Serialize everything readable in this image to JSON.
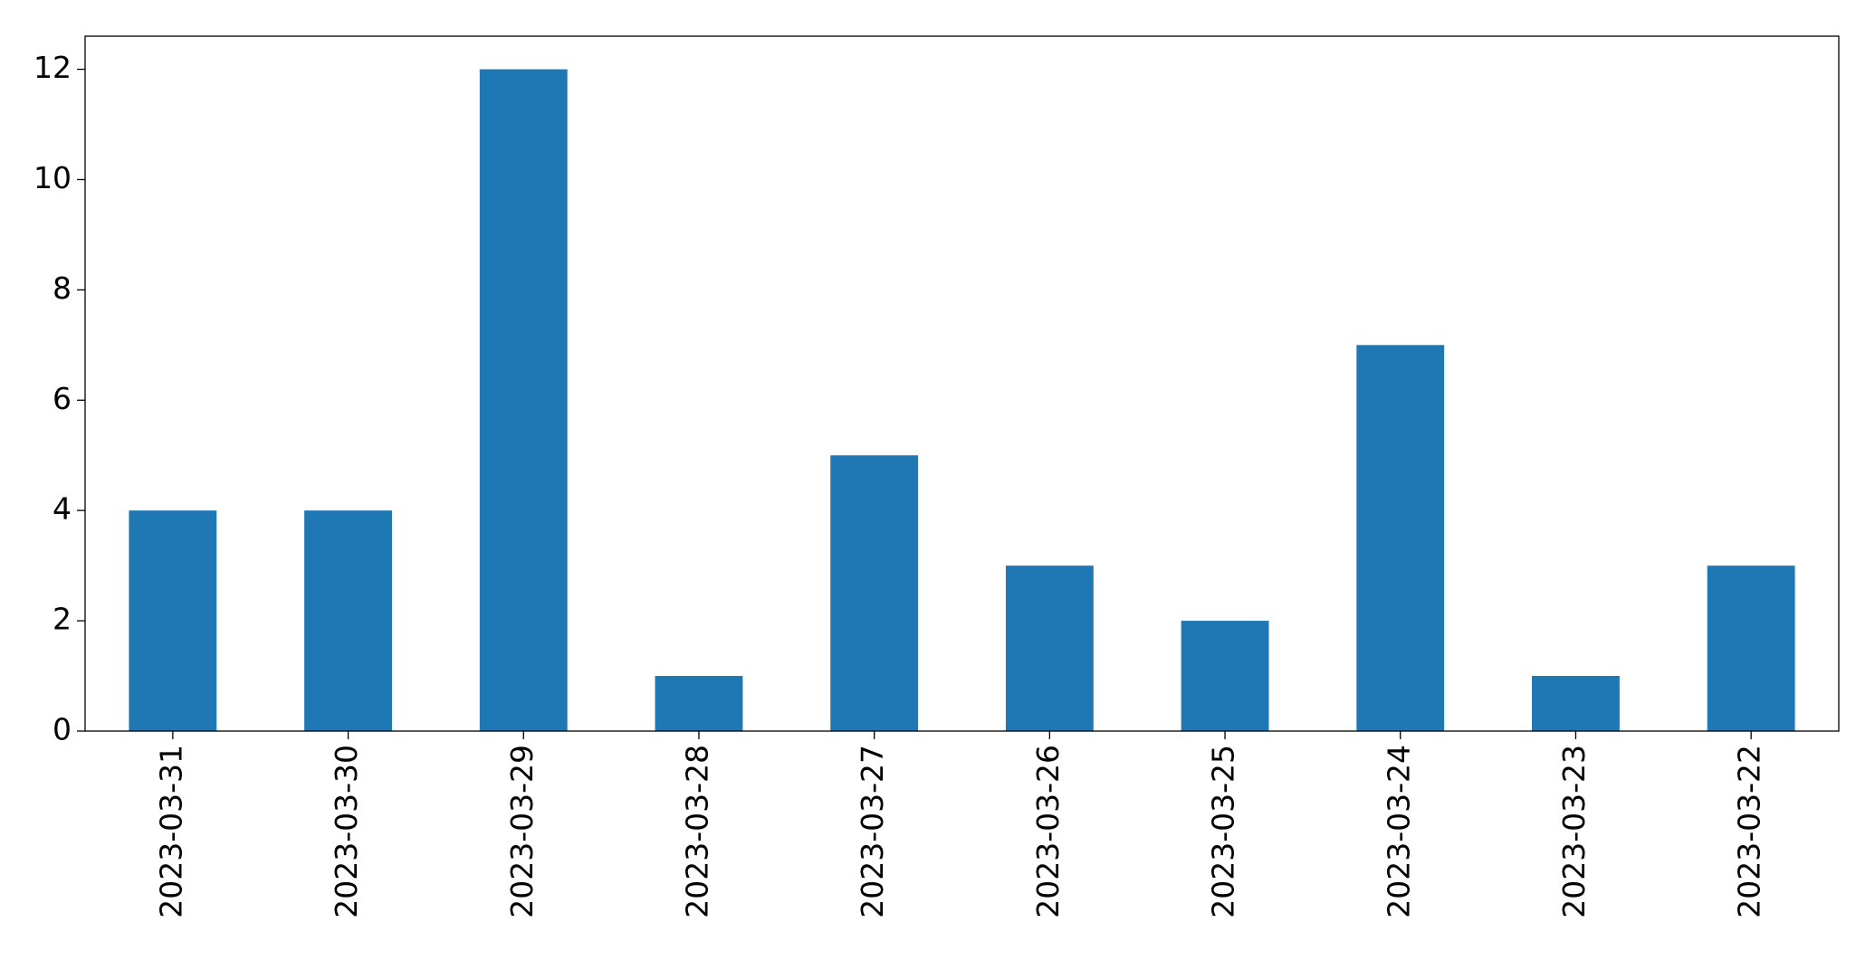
{
  "chart_data": {
    "type": "bar",
    "categories": [
      "2023-03-31",
      "2023-03-30",
      "2023-03-29",
      "2023-03-28",
      "2023-03-27",
      "2023-03-26",
      "2023-03-25",
      "2023-03-24",
      "2023-03-23",
      "2023-03-22"
    ],
    "values": [
      4,
      4,
      12,
      1,
      5,
      3,
      2,
      7,
      1,
      3
    ],
    "color": "#1f77b4",
    "ylim": [
      0,
      12.6
    ],
    "yticks": [
      0,
      2,
      4,
      6,
      8,
      10,
      12
    ],
    "grid": false
  }
}
